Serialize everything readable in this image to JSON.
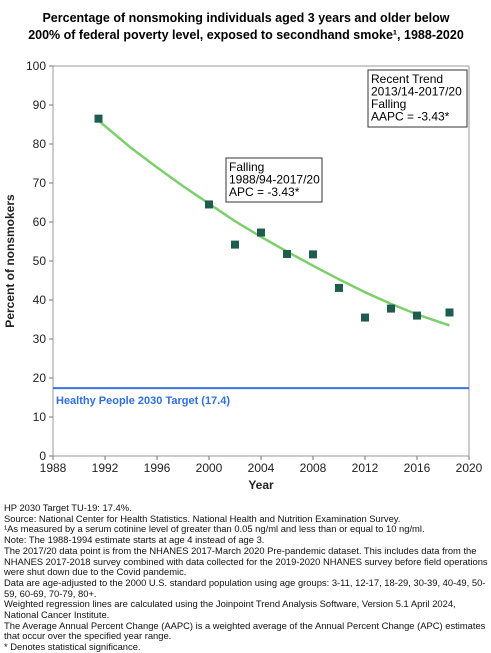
{
  "chart_data": {
    "type": "scatter",
    "title_line1": "Percentage of nonsmoking individuals aged 3 years and older below",
    "title_line2": "200% of federal poverty level, exposed to secondhand smoke¹, 1988-2020",
    "xlabel": "Year",
    "ylabel": "Percent of nonsmokers",
    "xlim": [
      1988,
      2020
    ],
    "ylim": [
      0,
      100
    ],
    "x_ticks": [
      1988,
      1992,
      1996,
      2000,
      2004,
      2008,
      2012,
      2016,
      2020
    ],
    "y_ticks": [
      0,
      10,
      20,
      30,
      40,
      50,
      60,
      70,
      80,
      90,
      100
    ],
    "grid": false,
    "colors": {
      "points": "#1f5c50",
      "trend": "#7ccf6a",
      "target": "#3b73e6"
    },
    "series": [
      {
        "x": [
          1991.5,
          2000,
          2002,
          2004,
          2006,
          2008,
          2010,
          2012,
          2014,
          2016,
          2018.5
        ],
        "y": [
          86.5,
          64.5,
          54.2,
          57.3,
          51.8,
          51.7,
          43.1,
          35.5,
          37.8,
          36.0,
          36.8
        ]
      }
    ],
    "trend": {
      "x": [
        1991.5,
        1994,
        1996,
        1998,
        2000,
        2002,
        2004,
        2006,
        2008,
        2010,
        2012,
        2014,
        2016,
        2018.5
      ],
      "y": [
        86.0,
        79.0,
        74.0,
        69.2,
        64.7,
        60.2,
        56.2,
        52.4,
        48.8,
        45.3,
        42.0,
        39.0,
        36.3,
        33.5
      ]
    },
    "target": {
      "value": 17.4,
      "label": "Healthy People 2030 Target (17.4)"
    },
    "annotations": {
      "falling_box": [
        "Falling",
        "1988/94-2017/20",
        "APC = -3.43*"
      ],
      "recent_box": [
        "Recent Trend",
        "2013/14-2017/20",
        "Falling",
        "AAPC = -3.43*"
      ]
    }
  },
  "footnotes": [
    "HP 2030 Target TU-19: 17.4%.",
    "Source: National Center for Health Statistics. National Health and Nutrition Examination Survey.",
    "¹As measured by a serum cotinine level of greater than 0.05 ng/ml and less than or equal to 10 ng/ml.",
    "Note: The 1988-1994 estimate starts at age 4 instead of age 3.",
    "The 2017/20 data point is from the NHANES 2017-March 2020 Pre-pandemic dataset. This includes data from the NHANES 2017-2018 survey combined with data collected for the 2019-2020 NHANES survey before field operations were shut down due to the Covid pandemic.",
    "Data are age-adjusted to the 2000 U.S. standard population using age groups: 3-11, 12-17, 18-29, 30-39, 40-49, 50-59, 60-69, 70-79, 80+.",
    "Weighted regression lines are calculated using the Joinpoint Trend Analysis Software, Version 5.1 April 2024, National Cancer Institute.",
    "The Average Annual Percent Change (AAPC) is a weighted average of the Annual Percent Change (APC) estimates that occur over the specified year range.",
    "* Denotes statistical significance."
  ]
}
